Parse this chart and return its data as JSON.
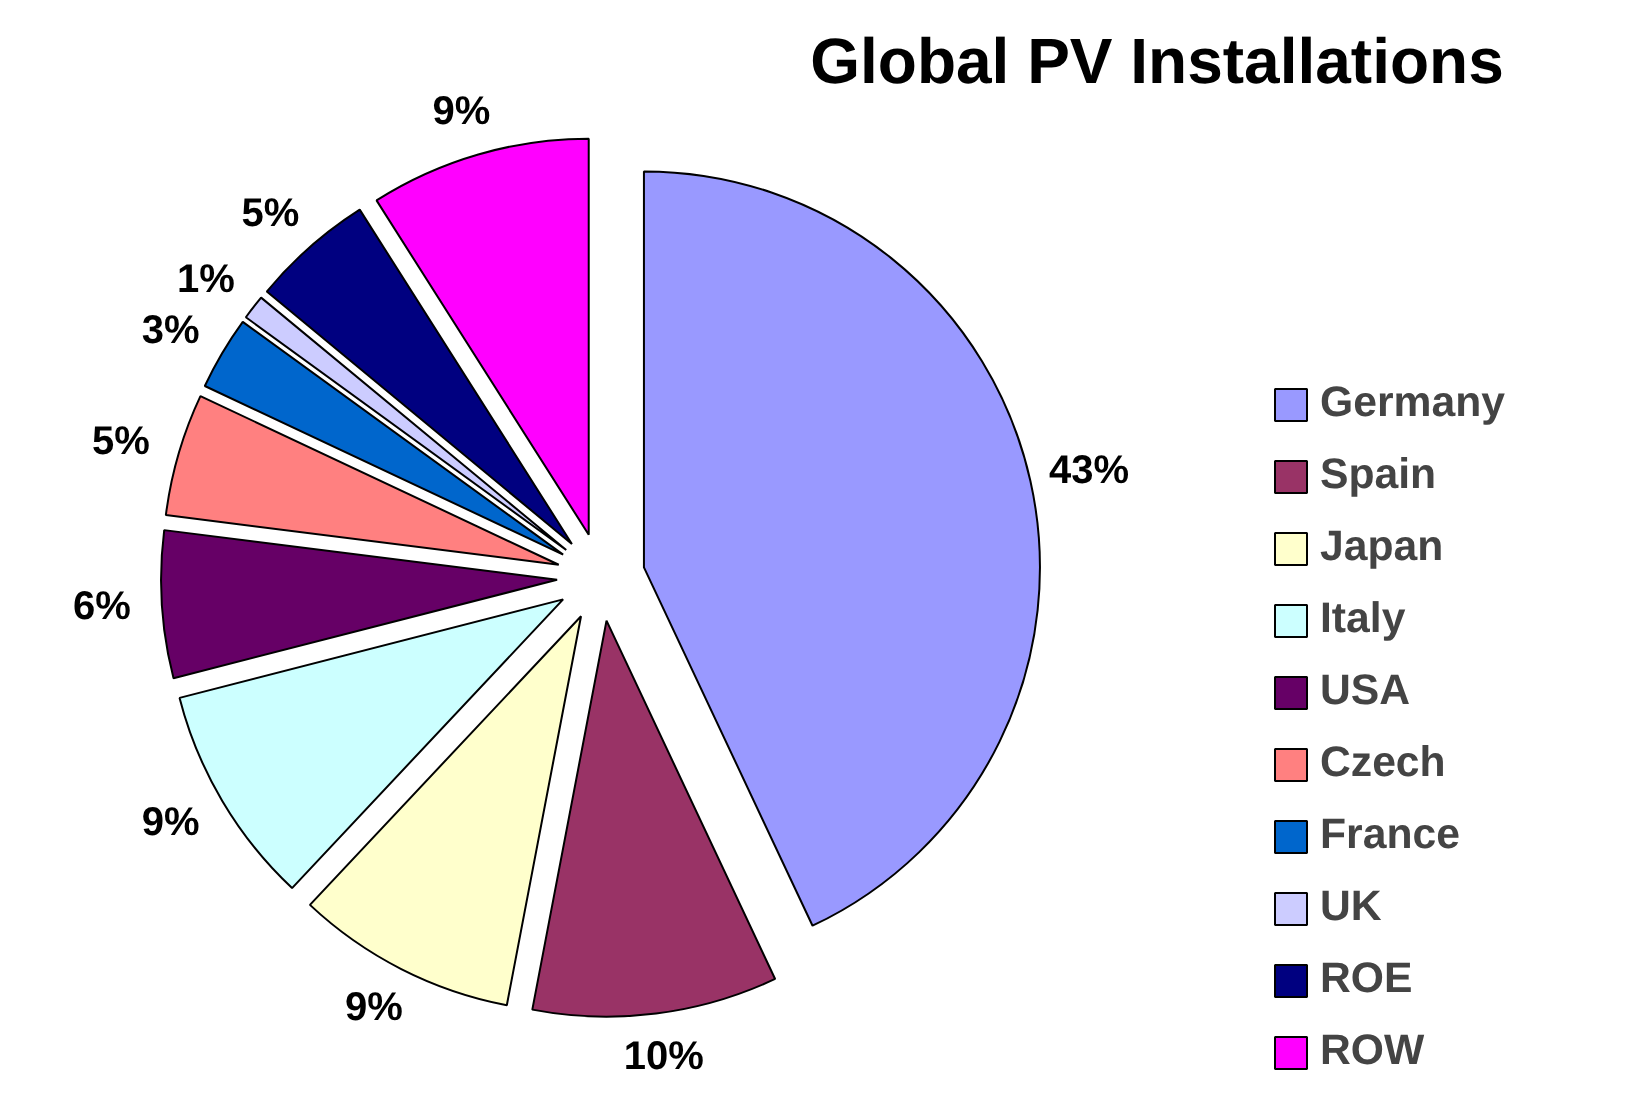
{
  "chart_data": {
    "type": "pie",
    "title": "Global PV Installations",
    "categories": [
      "Germany",
      "Spain",
      "Japan",
      "Italy",
      "USA",
      "Czech",
      "France",
      "UK",
      "ROE",
      "ROW"
    ],
    "values": [
      43,
      10,
      9,
      9,
      6,
      5,
      3,
      1,
      5,
      9
    ],
    "value_labels": [
      "43%",
      "10%",
      "9%",
      "9%",
      "6%",
      "5%",
      "3%",
      "1%",
      "5%",
      "9%"
    ],
    "colors": [
      "#9999ff",
      "#993366",
      "#ffffcc",
      "#ccffff",
      "#660066",
      "#ff8080",
      "#0066cc",
      "#ccccff",
      "#000080",
      "#ff00ff"
    ],
    "legend": "right"
  }
}
